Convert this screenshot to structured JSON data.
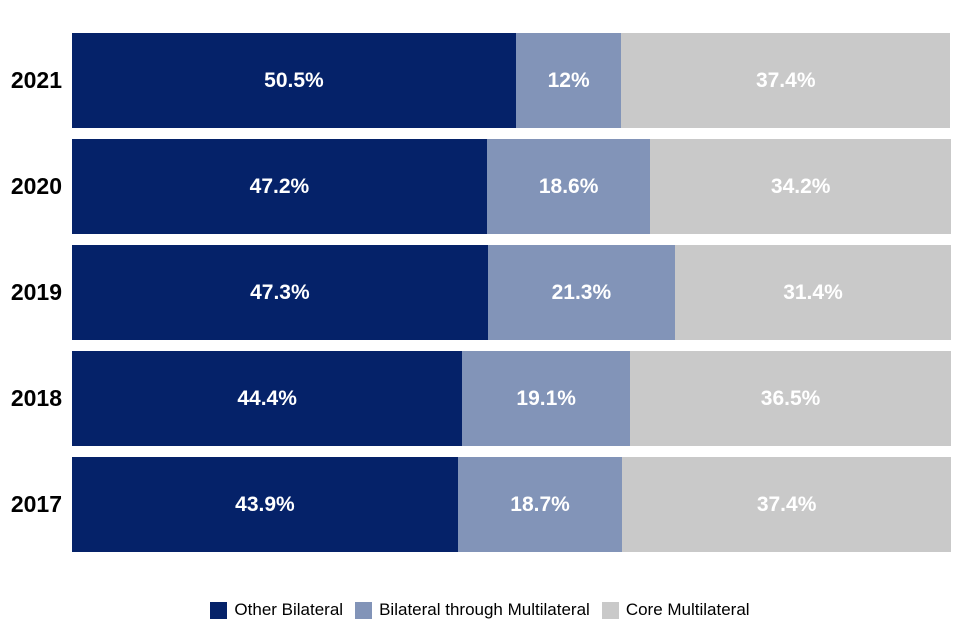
{
  "chart_data": {
    "type": "bar",
    "variant": "horizontal-stacked",
    "title": "",
    "xlabel": "",
    "ylabel": "",
    "xlim": [
      0,
      100
    ],
    "grid": false,
    "legend_position": "bottom",
    "value_label_color": "#FFFFFF",
    "category_label_color": "#000000",
    "categories": [
      "2021",
      "2020",
      "2019",
      "2018",
      "2017"
    ],
    "series": [
      {
        "name": "Other Bilateral",
        "color": "#052269",
        "values": [
          50.5,
          47.2,
          47.3,
          44.4,
          43.9
        ],
        "labels": [
          "50.5%",
          "47.2%",
          "47.3%",
          "44.4%",
          "43.9%"
        ]
      },
      {
        "name": "Bilateral through Multilateral",
        "color": "#8294B8",
        "values": [
          12,
          18.6,
          21.3,
          19.1,
          18.7
        ],
        "labels": [
          "12%",
          "18.6%",
          "21.3%",
          "19.1%",
          "18.7%"
        ]
      },
      {
        "name": "Core Multilateral",
        "color": "#C9C9C9",
        "values": [
          37.4,
          34.2,
          31.4,
          36.5,
          37.4
        ],
        "labels": [
          "37.4%",
          "34.2%",
          "31.4%",
          "36.5%",
          "37.4%"
        ]
      }
    ]
  }
}
